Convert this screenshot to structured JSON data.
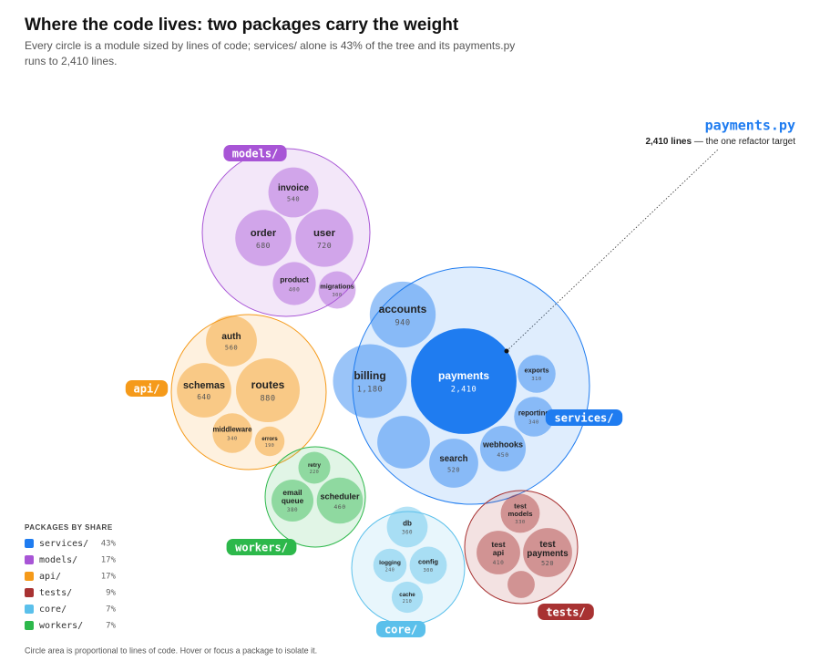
{
  "chart_data": {
    "type": "pack",
    "title": "Where the code lives: two packages carry the weight",
    "subtitle": "Every circle is a module sized by lines of code; services/ alone is 43% of the tree and its payments.py runs to 2,410 lines.",
    "annotation": {
      "title": "payments.py",
      "strong": "2,410 lines",
      "text": "— the one refactor target"
    },
    "legend_title": "PACKAGES BY SHARE",
    "footnote": "Circle area is proportional to lines of code. Hover or focus a package to isolate it.",
    "packages": [
      {
        "name": "services/",
        "color": "#1f7cf0",
        "share": 43,
        "share_label": "43%",
        "modules": [
          "accounts",
          "billing",
          "payments",
          "exports",
          "reporting",
          "webhooks",
          "search",
          null
        ],
        "values": [
          940,
          1180,
          2410,
          310,
          340,
          450,
          520,
          600
        ],
        "value_labels": [
          "940",
          "1,180",
          "2,410",
          "310",
          "340",
          "450",
          "520",
          null
        ]
      },
      {
        "name": "models/",
        "color": "#a855d6",
        "share": 17,
        "share_label": "17%",
        "modules": [
          "invoice",
          "order",
          "user",
          "product",
          "migrations"
        ],
        "values": [
          540,
          680,
          720,
          400,
          300
        ],
        "value_labels": [
          "540",
          "680",
          "720",
          "400",
          "300"
        ]
      },
      {
        "name": "api/",
        "color": "#f59a1a",
        "share": 17,
        "share_label": "17%",
        "modules": [
          "auth",
          "schemas",
          "routes",
          "middleware",
          "errors"
        ],
        "values": [
          560,
          640,
          880,
          340,
          190
        ],
        "value_labels": [
          "560",
          "640",
          "880",
          "340",
          "190"
        ]
      },
      {
        "name": "tests/",
        "color": "#a83232",
        "share": 9,
        "share_label": "9%",
        "modules": [
          "test models",
          "test api",
          "test payments",
          null
        ],
        "values": [
          330,
          410,
          520,
          160
        ],
        "value_labels": [
          "330",
          "410",
          "520",
          null
        ]
      },
      {
        "name": "core/",
        "color": "#5bc0eb",
        "share": 7,
        "share_label": "7%",
        "modules": [
          "db",
          "logging",
          "config",
          "cache"
        ],
        "values": [
          360,
          240,
          300,
          210
        ],
        "value_labels": [
          "360",
          "240",
          "300",
          "210"
        ]
      },
      {
        "name": "workers/",
        "color": "#2db84b",
        "share": 7,
        "share_label": "7%",
        "modules": [
          "retry",
          "email queue",
          "scheduler"
        ],
        "values": [
          220,
          380,
          460
        ],
        "value_labels": [
          "220",
          "380",
          "460"
        ]
      }
    ]
  }
}
